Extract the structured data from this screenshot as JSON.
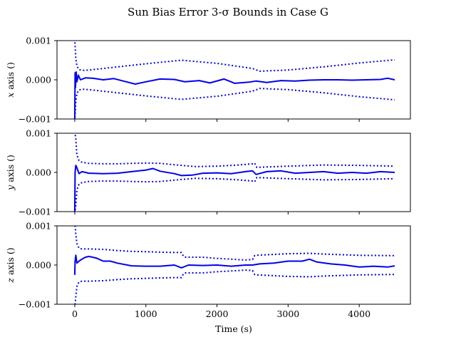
{
  "colors": {
    "series": "#0000ee",
    "axes": "#000000",
    "background": "#ffffff"
  },
  "chart_data": {
    "type": "line",
    "title": "Sun Bias Error 3-σ Bounds in Case G",
    "xlabel": "Time (s)",
    "xlim": [
      -250,
      4720
    ],
    "xticks": [
      0,
      1000,
      2000,
      3000,
      4000
    ],
    "xtick_labels": [
      "0",
      "1000",
      "2000",
      "3000",
      "4000"
    ],
    "grid": false,
    "legend": "none",
    "subplots": [
      {
        "ylabel_var": "x",
        "ylabel_rest": " axis ()",
        "ylim": [
          -0.001,
          0.001
        ],
        "yticks": [
          -0.001,
          0.0,
          0.001
        ],
        "ytick_labels": [
          "−0.001",
          "0.000",
          "0.001"
        ],
        "bound": {
          "x": [
            0,
            15,
            30,
            60,
            100,
            200,
            500,
            1000,
            1500,
            2000,
            2500,
            2600,
            3000,
            3500,
            4000,
            4500
          ],
          "y": [
            0.00105,
            0.00055,
            0.00035,
            0.00026,
            0.00024,
            0.00025,
            0.00031,
            0.00041,
            0.0005,
            0.00042,
            0.00029,
            0.00022,
            0.00025,
            0.00033,
            0.00043,
            0.00051
          ]
        },
        "estimate": {
          "x": [
            0,
            5,
            10,
            20,
            30,
            50,
            80,
            150,
            250,
            400,
            550,
            700,
            850,
            1000,
            1200,
            1400,
            1550,
            1750,
            1900,
            2100,
            2250,
            2450,
            2550,
            2700,
            2900,
            3100,
            3300,
            3500,
            3700,
            3900,
            4100,
            4300,
            4400,
            4500
          ],
          "y": [
            -0.001,
            0.00018,
            -0.0002,
            0.0002,
            -5e-05,
            0.00012,
            0.0,
            5e-05,
            4e-05,
            0.0,
            3e-05,
            -4e-05,
            -0.00011,
            -5e-05,
            2e-05,
            1e-05,
            -5e-05,
            -2e-05,
            -8e-05,
            2e-05,
            -9e-05,
            -6e-05,
            -3e-05,
            -7e-05,
            -2e-05,
            -3e-05,
            -1e-05,
            0.0,
            0.0,
            -1e-05,
            0.0,
            1e-05,
            4e-05,
            0.0
          ]
        }
      },
      {
        "ylabel_var": "y",
        "ylabel_rest": " axis ()",
        "ylim": [
          -0.001,
          0.001
        ],
        "yticks": [
          -0.001,
          0.0,
          0.001
        ],
        "ytick_labels": [
          "−0.001",
          "0.000",
          "0.001"
        ],
        "bound": {
          "x": [
            0,
            15,
            30,
            60,
            100,
            200,
            400,
            600,
            800,
            1000,
            1200,
            1500,
            1700,
            2000,
            2300,
            2500,
            2530,
            2560,
            3000,
            3500,
            4000,
            4500
          ],
          "y": [
            0.00105,
            0.00085,
            0.00045,
            0.0003,
            0.00026,
            0.00023,
            0.00022,
            0.00022,
            0.00023,
            0.00024,
            0.00023,
            0.00018,
            0.00015,
            0.00016,
            0.00019,
            0.00022,
            0.00024,
            0.00013,
            0.00016,
            0.00019,
            0.00018,
            0.00016
          ]
        },
        "estimate": {
          "x": [
            0,
            5,
            15,
            30,
            60,
            100,
            200,
            400,
            600,
            800,
            900,
            1000,
            1100,
            1200,
            1400,
            1500,
            1650,
            1800,
            2000,
            2200,
            2400,
            2500,
            2550,
            2700,
            2900,
            3100,
            3300,
            3500,
            3700,
            3900,
            4100,
            4300,
            4500
          ],
          "y": [
            -0.001,
            0.0,
            0.00018,
            0.00012,
            -3e-05,
            2e-05,
            -2e-05,
            -3e-05,
            -2e-05,
            2e-05,
            4e-05,
            6e-05,
            0.0001,
            3e-05,
            -3e-05,
            -8e-05,
            -7e-05,
            -2e-05,
            -1e-05,
            -3e-05,
            2e-05,
            4e-05,
            -5e-05,
            2e-05,
            4e-05,
            -2e-05,
            0.0,
            2e-05,
            -2e-05,
            0.0,
            -2e-05,
            2e-05,
            0.0
          ]
        }
      },
      {
        "ylabel_var": "z",
        "ylabel_rest": " axis ()",
        "ylim": [
          -0.001,
          0.001
        ],
        "yticks": [
          -0.001,
          0.0,
          0.001
        ],
        "ytick_labels": [
          "−0.001",
          "0.000",
          "0.001"
        ],
        "bound": {
          "x": [
            0,
            15,
            30,
            60,
            100,
            200,
            400,
            600,
            800,
            1000,
            1200,
            1400,
            1500,
            1530,
            1560,
            1800,
            2000,
            2200,
            2400,
            2500,
            2530,
            2560,
            3000,
            3300,
            3500,
            4000,
            4500
          ],
          "y": [
            0.0011,
            0.0008,
            0.00055,
            0.00043,
            0.00041,
            0.00041,
            0.0004,
            0.00037,
            0.00035,
            0.00034,
            0.00033,
            0.00032,
            0.00032,
            0.00022,
            0.0002,
            0.0002,
            0.00017,
            0.00015,
            0.00013,
            0.00014,
            0.00024,
            0.00025,
            0.00029,
            0.0003,
            0.00028,
            0.00025,
            0.00024
          ]
        },
        "estimate": {
          "x": [
            0,
            5,
            15,
            30,
            60,
            100,
            150,
            200,
            300,
            400,
            500,
            600,
            800,
            1000,
            1200,
            1400,
            1500,
            1600,
            1800,
            2000,
            2200,
            2400,
            2500,
            2600,
            2800,
            3000,
            3200,
            3300,
            3400,
            3600,
            3800,
            4000,
            4200,
            4400,
            4500
          ],
          "y": [
            -0.00025,
            0.0001,
            0.00025,
            5e-05,
            0.0001,
            0.00015,
            0.0002,
            0.00022,
            0.00018,
            0.0001,
            0.0001,
            5e-05,
            -2e-05,
            -3e-05,
            -3e-05,
            0.0,
            -7e-05,
            0.0,
            -1e-05,
            0.0,
            -3e-05,
            0.0,
            0.0,
            3e-05,
            5e-05,
            0.0001,
            0.0001,
            0.00015,
            8e-05,
            3e-05,
            0.0,
            -5e-05,
            -3e-05,
            -5e-05,
            -2e-05
          ]
        }
      }
    ]
  }
}
